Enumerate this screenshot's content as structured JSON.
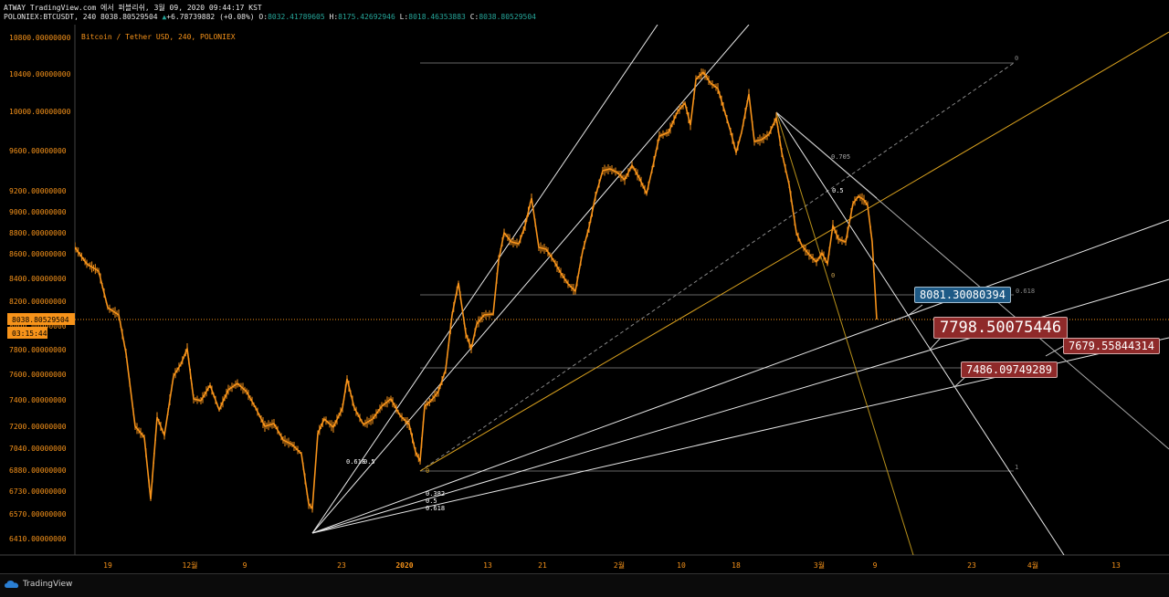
{
  "header": {
    "line1": "ATWAY TradingView.com 에서 퍼블리쉬, 3월 09, 2020 09:44:17 KST",
    "symbol": "POLONIEX:BTCUSDT, 240",
    "last": "8038.80529504",
    "change": "+6.78739882 (+0.08%)",
    "o_label": "O:",
    "o_val": "8032.41789605",
    "h_label": "H:",
    "h_val": "8175.42692946",
    "l_label": "L:",
    "l_val": "8018.46353883",
    "c_label": "C:",
    "c_val": "8038.80529504"
  },
  "chart": {
    "legend": "Bitcoin / Tether USD, 240, POLONIEX",
    "current_price_label": "8038.80529504",
    "countdown_label": "03:15:44",
    "y_ticks": [
      "10800.00000000",
      "10400.00000000",
      "10000.00000000",
      "9600.00000000",
      "9200.00000000",
      "9000.00000000",
      "8800.00000000",
      "8600.00000000",
      "8400.00000000",
      "8200.00000000",
      "8000.00000000",
      "7800.00000000",
      "7600.00000000",
      "7400.00000000",
      "7200.00000000",
      "7040.00000000",
      "6880.00000000",
      "6730.00000000",
      "6570.00000000",
      "6410.00000000"
    ],
    "x_ticks": [
      "19",
      "12월",
      "9",
      "23",
      "2020",
      "13",
      "21",
      "2월",
      "10",
      "18",
      "3월",
      "9",
      "23",
      "4월",
      "13"
    ],
    "fib_labels": {
      "top_zero": "0",
      "lvl_705": "0.705",
      "lvl_05": "0.5",
      "lvl_0_mid": "0",
      "lvl_618_right": "0.618",
      "lvl_1": "1",
      "fan_0": "0",
      "fan_618_05": "0.618",
      "fan_05b": "0.5",
      "fan_382": "0.382",
      "fan_05": "0.5",
      "fan_618": "0.618"
    },
    "price_boxes": {
      "blue": "8081.30080394",
      "red_big": "7798.50075446",
      "red_right": "7679.55844314",
      "red_lower": "7486.09749289"
    },
    "colors": {
      "candle": "#f7931a",
      "axis_text": "#f7931a",
      "blue_box": "#1e5a86",
      "red_box": "#8f2a2a"
    }
  },
  "footer": {
    "brand": "TradingView"
  }
}
